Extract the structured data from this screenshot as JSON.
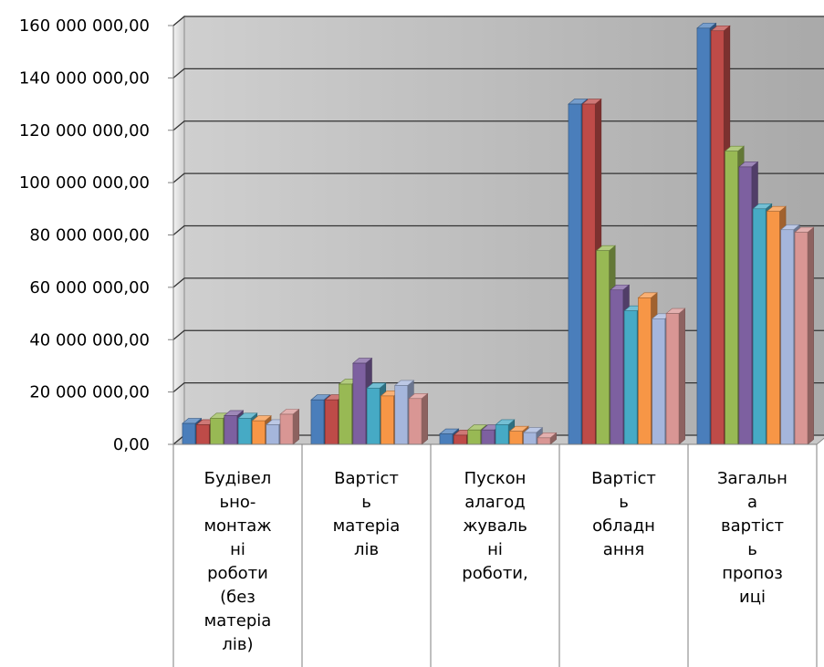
{
  "chart_data": {
    "type": "bar",
    "title": "",
    "xlabel": "",
    "ylabel": "",
    "ylim": [
      0,
      160000000
    ],
    "y_ticks": [
      {
        "value": 0,
        "label": "0,00"
      },
      {
        "value": 20000000,
        "label": "20 000 000,00"
      },
      {
        "value": 40000000,
        "label": "40 000 000,00"
      },
      {
        "value": 60000000,
        "label": "60 000 000,00"
      },
      {
        "value": 80000000,
        "label": "80 000 000,00"
      },
      {
        "value": 100000000,
        "label": "100 000 000,00"
      },
      {
        "value": 120000000,
        "label": "120 000 000,00"
      },
      {
        "value": 140000000,
        "label": "140 000 000,00"
      },
      {
        "value": 160000000,
        "label": "160 000 000,00"
      }
    ],
    "grid": true,
    "legend": "none",
    "categories": [
      [
        "Будівел",
        "ьно-",
        "монтаж",
        "ні",
        "роботи",
        "(без",
        "матеріа",
        "лів)"
      ],
      [
        "Вартіст",
        "ь",
        "матеріа",
        "лів"
      ],
      [
        "Пускон",
        "алагод",
        "жуваль",
        "ні",
        "роботи,"
      ],
      [
        "Вартіст",
        "ь",
        "обладн",
        "ання"
      ],
      [
        "Загальн",
        "а",
        "вартіст",
        "ь",
        "пропоз",
        "иці"
      ]
    ],
    "series": [
      {
        "color": "#4A7EBB",
        "values": [
          8000000,
          17000000,
          4000000,
          130000000,
          159000000
        ]
      },
      {
        "color": "#BE4B48",
        "values": [
          7500000,
          17000000,
          3500000,
          130000000,
          158000000
        ]
      },
      {
        "color": "#98B954",
        "values": [
          10000000,
          23000000,
          5500000,
          74000000,
          112000000
        ]
      },
      {
        "color": "#7D60A0",
        "values": [
          11000000,
          31000000,
          5500000,
          59000000,
          106000000
        ]
      },
      {
        "color": "#46AAC5",
        "values": [
          10000000,
          21500000,
          7500000,
          51000000,
          90000000
        ]
      },
      {
        "color": "#F79646",
        "values": [
          9000000,
          18500000,
          5000000,
          56000000,
          89000000
        ]
      },
      {
        "color": "#A5B6DC",
        "values": [
          7500000,
          22500000,
          4500000,
          48000000,
          82000000
        ]
      },
      {
        "color": "#D99694",
        "values": [
          11500000,
          17500000,
          2500000,
          50000000,
          81000000
        ]
      }
    ]
  }
}
